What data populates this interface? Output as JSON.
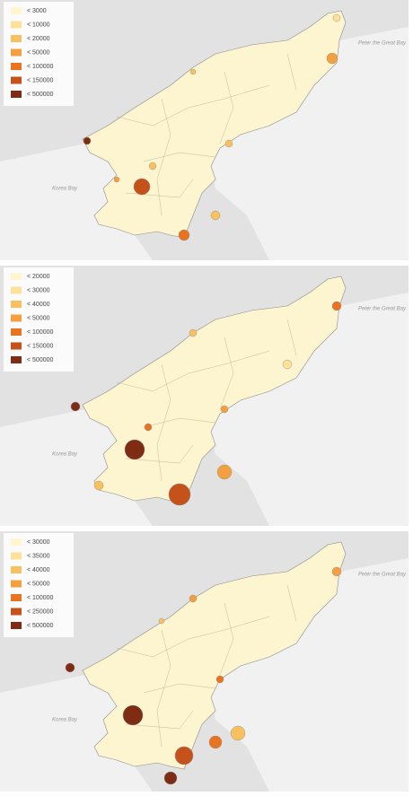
{
  "panels": [
    {
      "legend": [
        {
          "label": "< 3000",
          "color": "#fff6cf"
        },
        {
          "label": "< 10000",
          "color": "#fde09a"
        },
        {
          "label": "< 20000",
          "color": "#f9c060"
        },
        {
          "label": "< 50000",
          "color": "#f4a040"
        },
        {
          "label": "< 100000",
          "color": "#e87422"
        },
        {
          "label": "< 150000",
          "color": "#c4521a"
        },
        {
          "label": "< 500000",
          "color": "#7e2c14"
        }
      ],
      "labels": [
        "Korea Bay",
        "Peter the Great Bay"
      ]
    },
    {
      "legend": [
        {
          "label": "< 20000",
          "color": "#fff6cf"
        },
        {
          "label": "< 30000",
          "color": "#fde09a"
        },
        {
          "label": "< 40000",
          "color": "#f9c060"
        },
        {
          "label": "< 50000",
          "color": "#f4a040"
        },
        {
          "label": "< 100000",
          "color": "#e87422"
        },
        {
          "label": "< 150000",
          "color": "#c4521a"
        },
        {
          "label": "< 500000",
          "color": "#7e2c14"
        }
      ],
      "labels": [
        "Korea Bay",
        "Peter the Great Bay"
      ]
    },
    {
      "legend": [
        {
          "label": "< 30000",
          "color": "#fff6cf"
        },
        {
          "label": "< 35000",
          "color": "#fde09a"
        },
        {
          "label": "< 40000",
          "color": "#f9c060"
        },
        {
          "label": "< 50000",
          "color": "#f4a040"
        },
        {
          "label": "< 100000",
          "color": "#e87422"
        },
        {
          "label": "< 250000",
          "color": "#c4521a"
        },
        {
          "label": "< 500000",
          "color": "#7e2c14"
        }
      ],
      "labels": [
        "Korea Bay",
        "Peter the Great Bay"
      ]
    }
  ]
}
